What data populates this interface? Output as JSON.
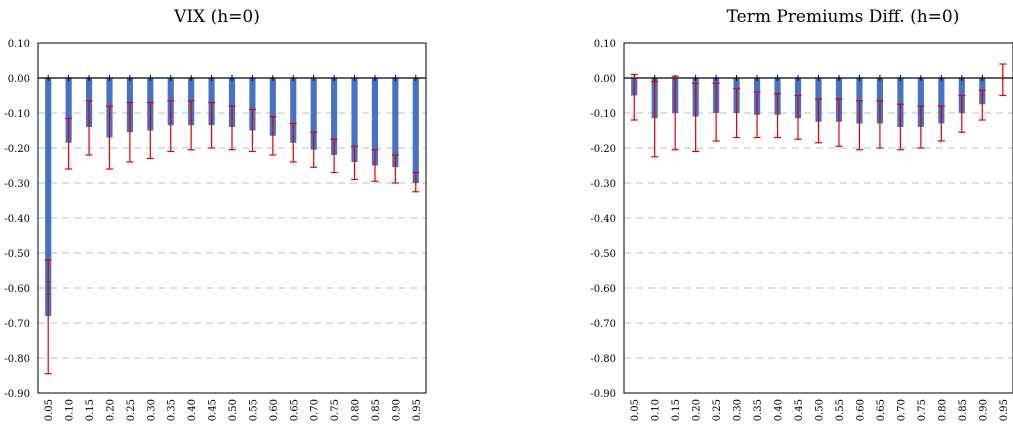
{
  "colors": {
    "bar": "#4472C4",
    "errorbar": "#E00000",
    "grid": "#BFBFBF",
    "axis": "#000000"
  },
  "chart_data": [
    {
      "type": "bar",
      "title": "VIX (h=0)",
      "xlabel": "",
      "ylabel": "",
      "ylim": [
        -0.9,
        0.1
      ],
      "yticks": [
        "0.10",
        "0.00",
        "-0.10",
        "-0.20",
        "-0.30",
        "-0.40",
        "-0.50",
        "-0.60",
        "-0.70",
        "-0.80",
        "-0.90"
      ],
      "grid": true,
      "categories": [
        "0.05",
        "0.10",
        "0.15",
        "0.20",
        "0.25",
        "0.30",
        "0.35",
        "0.40",
        "0.45",
        "0.50",
        "0.55",
        "0.60",
        "0.65",
        "0.70",
        "0.75",
        "0.80",
        "0.85",
        "0.90",
        "0.95"
      ],
      "values": [
        -0.68,
        -0.185,
        -0.14,
        -0.17,
        -0.155,
        -0.15,
        -0.135,
        -0.135,
        -0.135,
        -0.14,
        -0.15,
        -0.165,
        -0.185,
        -0.205,
        -0.22,
        -0.24,
        -0.25,
        -0.255,
        -0.3
      ],
      "err_low": [
        -0.845,
        -0.26,
        -0.22,
        -0.26,
        -0.24,
        -0.23,
        -0.21,
        -0.205,
        -0.2,
        -0.205,
        -0.21,
        -0.22,
        -0.24,
        -0.255,
        -0.27,
        -0.29,
        -0.295,
        -0.3,
        -0.325
      ],
      "err_high": [
        -0.52,
        -0.115,
        -0.065,
        -0.08,
        -0.07,
        -0.07,
        -0.065,
        -0.065,
        -0.07,
        -0.08,
        -0.09,
        -0.11,
        -0.13,
        -0.155,
        -0.175,
        -0.195,
        -0.205,
        -0.22,
        -0.27
      ]
    },
    {
      "type": "bar",
      "title": "Term Premiums Diff. (h=0)",
      "xlabel": "",
      "ylabel": "",
      "ylim": [
        -0.9,
        0.1
      ],
      "yticks": [
        "0.10",
        "0.00",
        "-0.10",
        "-0.20",
        "-0.30",
        "-0.40",
        "-0.50",
        "-0.60",
        "-0.70",
        "-0.80",
        "-0.90"
      ],
      "grid": true,
      "categories": [
        "0.05",
        "0.10",
        "0.15",
        "0.20",
        "0.25",
        "0.30",
        "0.35",
        "0.40",
        "0.45",
        "0.50",
        "0.55",
        "0.60",
        "0.65",
        "0.70",
        "0.75",
        "0.80",
        "0.85",
        "0.90",
        "0.95"
      ],
      "values": [
        -0.05,
        -0.115,
        -0.1,
        -0.11,
        -0.1,
        -0.1,
        -0.105,
        -0.105,
        -0.115,
        -0.125,
        -0.125,
        -0.13,
        -0.13,
        -0.14,
        -0.14,
        -0.13,
        -0.1,
        -0.075,
        0.0
      ],
      "err_low": [
        -0.12,
        -0.225,
        -0.205,
        -0.21,
        -0.18,
        -0.17,
        -0.17,
        -0.17,
        -0.175,
        -0.185,
        -0.195,
        -0.205,
        -0.2,
        -0.205,
        -0.2,
        -0.18,
        -0.155,
        -0.12,
        -0.05
      ],
      "err_high": [
        0.01,
        -0.01,
        0.005,
        -0.015,
        -0.015,
        -0.03,
        -0.04,
        -0.045,
        -0.05,
        -0.06,
        -0.06,
        -0.065,
        -0.065,
        -0.075,
        -0.08,
        -0.08,
        -0.05,
        -0.035,
        0.04
      ]
    }
  ]
}
